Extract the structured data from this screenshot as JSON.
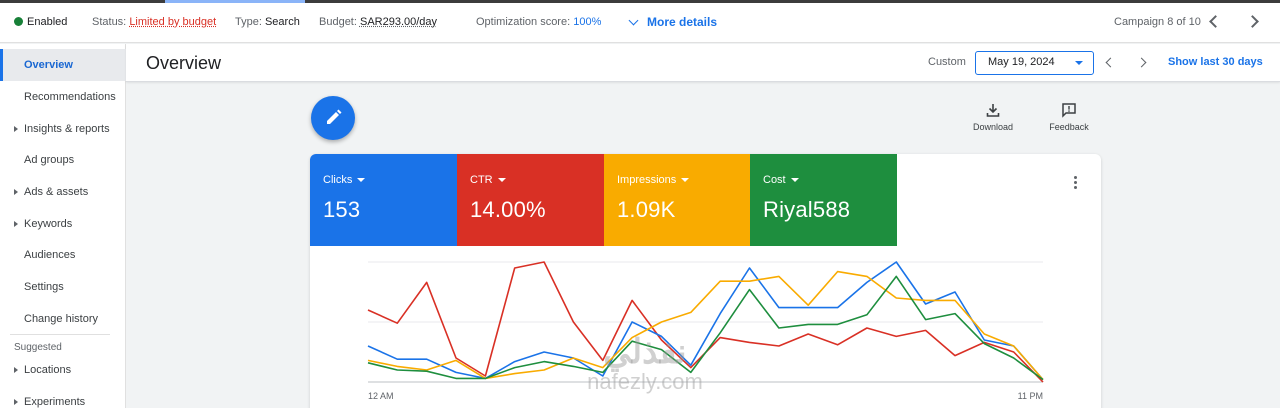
{
  "status_bar": {
    "enabled": "Enabled",
    "status_key": "Status:",
    "status_value": "Limited by budget",
    "type_key": "Type:",
    "type_value": "Search",
    "budget_key": "Budget:",
    "budget_value": "SAR293.00/day",
    "optimization_key": "Optimization score:",
    "optimization_value": "100%",
    "more_details": "More details",
    "campaign_counter": "Campaign 8 of 10"
  },
  "sidebar": {
    "items": [
      {
        "label": "Overview",
        "active": true,
        "expandable": false
      },
      {
        "label": "Recommendations",
        "active": false,
        "expandable": false
      },
      {
        "label": "Insights & reports",
        "active": false,
        "expandable": true
      },
      {
        "label": "Ad groups",
        "active": false,
        "expandable": false
      },
      {
        "label": "Ads & assets",
        "active": false,
        "expandable": true
      },
      {
        "label": "Keywords",
        "active": false,
        "expandable": true
      },
      {
        "label": "Audiences",
        "active": false,
        "expandable": false
      },
      {
        "label": "Settings",
        "active": false,
        "expandable": false
      },
      {
        "label": "Change history",
        "active": false,
        "expandable": false
      }
    ],
    "suggested_label": "Suggested",
    "suggested_items": [
      {
        "label": "Locations",
        "expandable": true
      },
      {
        "label": "Experiments",
        "expandable": true
      }
    ]
  },
  "header": {
    "title": "Overview",
    "custom_label": "Custom",
    "date_value": "May 19, 2024",
    "show_last": "Show last 30 days"
  },
  "tools": {
    "download": "Download",
    "feedback": "Feedback"
  },
  "metrics": [
    {
      "label": "Clicks",
      "value": "153",
      "color": "#1a73e8"
    },
    {
      "label": "CTR",
      "value": "14.00%",
      "color": "#d93025"
    },
    {
      "label": "Impressions",
      "value": "1.09K",
      "color": "#f9ab00"
    },
    {
      "label": "Cost",
      "value": "Riyal588",
      "color": "#1e8e3e"
    }
  ],
  "watermark": {
    "top": "نفذلي",
    "bottom": "nafezly.com"
  },
  "chart_data": {
    "type": "line",
    "x_start_label": "12 AM",
    "x_end_label": "11 PM",
    "x": [
      0,
      1,
      2,
      3,
      4,
      5,
      6,
      7,
      8,
      9,
      10,
      11,
      12,
      13,
      14,
      15,
      16,
      17,
      18,
      19,
      20,
      21,
      22,
      23
    ],
    "ylim": [
      0,
      100
    ],
    "grid": true,
    "series": [
      {
        "color": "#d93025",
        "values": [
          60,
          49,
          83,
          20,
          5,
          95,
          100,
          50,
          18,
          68,
          35,
          12,
          37,
          33,
          30,
          40,
          31,
          45,
          38,
          43,
          22,
          33,
          25,
          0
        ]
      },
      {
        "color": "#1a73e8",
        "values": [
          30,
          19,
          19,
          8,
          3,
          17,
          25,
          20,
          5,
          50,
          38,
          14,
          57,
          95,
          62,
          62,
          62,
          83,
          100,
          65,
          75,
          35,
          30,
          2
        ]
      },
      {
        "color": "#f9ab00",
        "values": [
          18,
          13,
          10,
          18,
          3,
          7,
          10,
          20,
          12,
          37,
          50,
          58,
          84,
          84,
          88,
          64,
          92,
          88,
          70,
          68,
          68,
          40,
          30,
          2
        ]
      },
      {
        "color": "#1e8e3e",
        "values": [
          16,
          10,
          9,
          3,
          3,
          12,
          17,
          13,
          8,
          34,
          27,
          8,
          41,
          77,
          45,
          48,
          48,
          56,
          88,
          52,
          57,
          32,
          20,
          2
        ]
      }
    ]
  }
}
